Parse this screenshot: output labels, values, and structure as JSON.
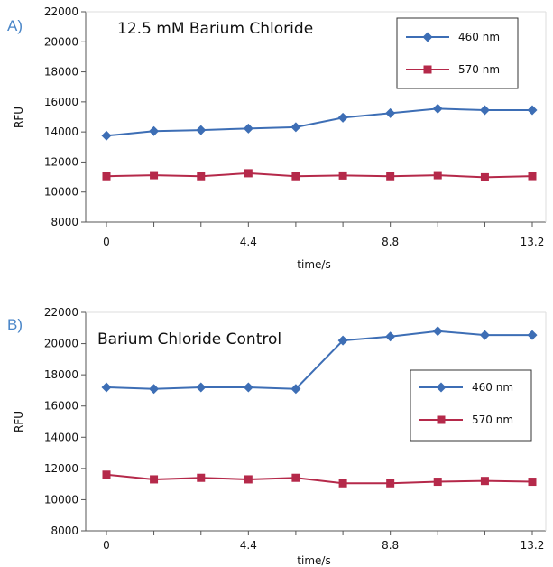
{
  "colors": {
    "series_460": "#3d6eb5",
    "series_570": "#b5294a",
    "axis": "#555555",
    "panel_letter": "#4a86c8"
  },
  "chart_data": [
    {
      "panel": "A)",
      "type": "line",
      "title": "12.5 mM Barium Chloride",
      "xlabel": "time/s",
      "ylabel": "RFU",
      "x_tick_labels": [
        "0",
        "4.4",
        "8.8",
        "13.2"
      ],
      "y_ticks": [
        8000,
        10000,
        12000,
        14000,
        16000,
        18000,
        20000,
        22000
      ],
      "ylim": [
        8000,
        22000
      ],
      "x": [
        0,
        1.47,
        2.93,
        4.4,
        5.87,
        7.33,
        8.8,
        10.27,
        11.73,
        13.2
      ],
      "legend_position": "top-right",
      "grid": false,
      "series": [
        {
          "name": "460 nm",
          "marker": "diamond",
          "values": [
            13750,
            14050,
            14120,
            14230,
            14320,
            14950,
            15250,
            15550,
            15450,
            15450
          ]
        },
        {
          "name": "570 nm",
          "marker": "square",
          "values": [
            11050,
            11120,
            11050,
            11250,
            11050,
            11100,
            11050,
            11120,
            10980,
            11060
          ]
        }
      ]
    },
    {
      "panel": "B)",
      "type": "line",
      "title": "Barium Chloride Control",
      "xlabel": "time/s",
      "ylabel": "RFU",
      "x_tick_labels": [
        "0",
        "4.4",
        "8.8",
        "13.2"
      ],
      "y_ticks": [
        8000,
        10000,
        12000,
        14000,
        16000,
        18000,
        20000,
        22000
      ],
      "ylim": [
        8000,
        22000
      ],
      "x": [
        0,
        1.47,
        2.93,
        4.4,
        5.87,
        7.33,
        8.8,
        10.27,
        11.73,
        13.2
      ],
      "legend_position": "center-right",
      "grid": false,
      "series": [
        {
          "name": "460 nm",
          "marker": "diamond",
          "values": [
            17200,
            17100,
            17200,
            17200,
            17100,
            20200,
            20450,
            20800,
            20550,
            20550
          ]
        },
        {
          "name": "570 nm",
          "marker": "square",
          "values": [
            11600,
            11300,
            11400,
            11300,
            11400,
            11050,
            11050,
            11150,
            11200,
            11150
          ]
        }
      ]
    }
  ]
}
